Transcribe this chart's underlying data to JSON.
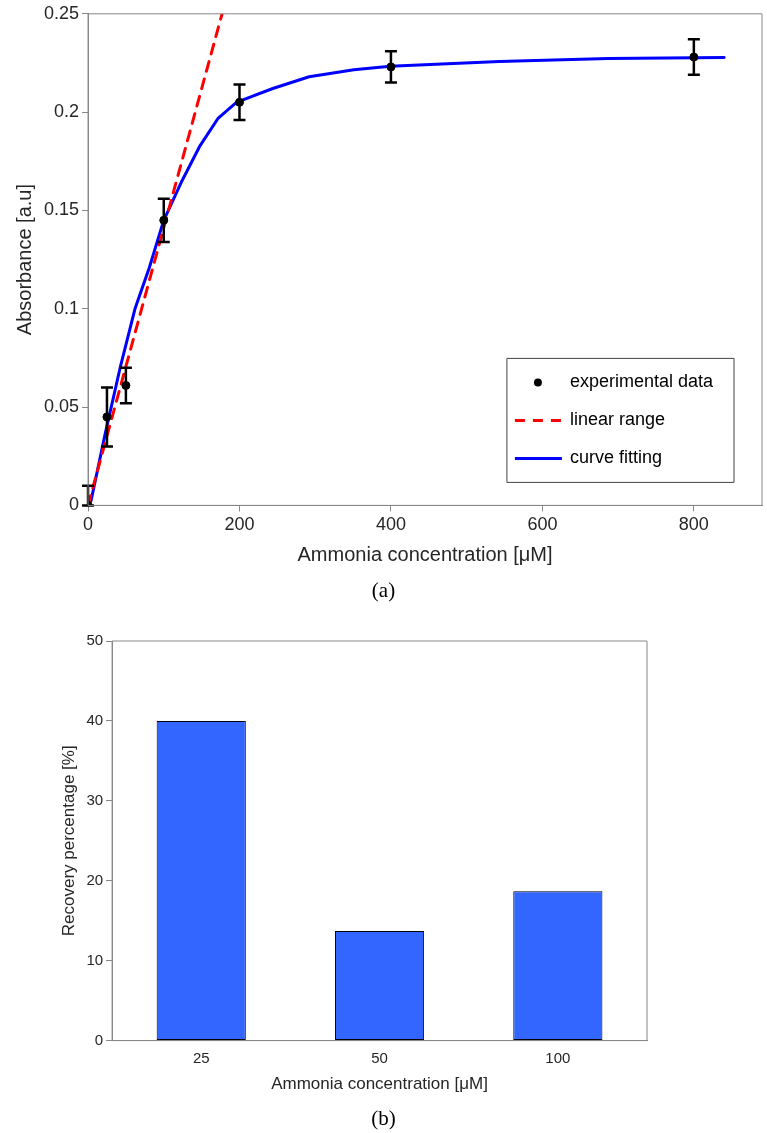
{
  "chart_data": [
    {
      "type": "scatter",
      "xlabel": "Ammonia concentration [μM]",
      "ylabel": "Absorbance [a.u]",
      "annotations": [
        "(a)"
      ],
      "xlim": [
        0,
        890
      ],
      "xticks": [
        0,
        200,
        400,
        600,
        800
      ],
      "ylim": [
        0,
        0.25
      ],
      "yticks": [
        0,
        0.05,
        0.1,
        0.15,
        0.2,
        0.25
      ],
      "grid": false,
      "legend": "bottom right",
      "marker": "circle",
      "series": [
        {
          "name": "experimental data",
          "type": "scatter",
          "color": "#000000",
          "x": [
            0,
            25,
            50,
            100,
            200,
            400,
            800
          ],
          "values": [
            0,
            0.045,
            0.061,
            0.145,
            0.205,
            0.223,
            0.228
          ],
          "errors": [
            [
              0,
              0.01
            ],
            0.015,
            0.009,
            0.011,
            0.009,
            0.008,
            0.009
          ]
        },
        {
          "name": "linear range",
          "type": "line",
          "color": "#ff0000",
          "line_style": "dashed",
          "marker": "none",
          "x": [
            0,
            177
          ],
          "values": [
            0,
            0.25
          ]
        },
        {
          "name": "curve fitting",
          "type": "line",
          "color": "#0000ff",
          "line_style": "solid",
          "marker": "none",
          "x": [
            0,
            4,
            23,
            43,
            62,
            81,
            100,
            124,
            148,
            172,
            196,
            244,
            292,
            351,
            399,
            543,
            687,
            840
          ],
          "values": [
            0,
            0.0024,
            0.037,
            0.071,
            0.1,
            0.121,
            0.145,
            0.165,
            0.183,
            0.197,
            0.205,
            0.212,
            0.218,
            0.2215,
            0.2233,
            0.2257,
            0.2273,
            0.2278
          ]
        }
      ]
    },
    {
      "type": "bar",
      "xlabel": "Ammonia concentration [μM]",
      "ylabel": "Recovery percentage [%]",
      "annotations": [
        "(b)"
      ],
      "categories": [
        "25",
        "50",
        "100"
      ],
      "values": [
        40,
        13.7,
        18.7
      ],
      "color": "#3366ff",
      "ylim": [
        0,
        50
      ],
      "yticks": [
        0,
        10,
        20,
        30,
        40,
        50
      ],
      "grid": false,
      "legend": false
    }
  ]
}
